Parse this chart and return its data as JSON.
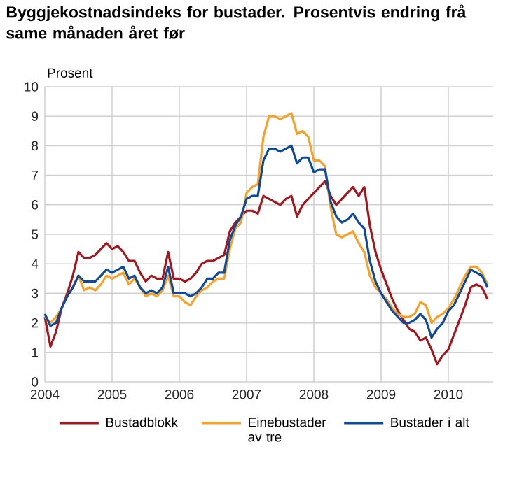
{
  "chart_data": {
    "type": "line",
    "title": "Byggjekostnadsindeks for bustader. Prosentvis endring frå same månaden året før",
    "ylabel": "Prosent",
    "x": [
      "2004-01",
      "2004-02",
      "2004-03",
      "2004-04",
      "2004-05",
      "2004-06",
      "2004-07",
      "2004-08",
      "2004-09",
      "2004-10",
      "2004-11",
      "2004-12",
      "2005-01",
      "2005-02",
      "2005-03",
      "2005-04",
      "2005-05",
      "2005-06",
      "2005-07",
      "2005-08",
      "2005-09",
      "2005-10",
      "2005-11",
      "2005-12",
      "2006-01",
      "2006-02",
      "2006-03",
      "2006-04",
      "2006-05",
      "2006-06",
      "2006-07",
      "2006-08",
      "2006-09",
      "2006-10",
      "2006-11",
      "2006-12",
      "2007-01",
      "2007-02",
      "2007-03",
      "2007-04",
      "2007-05",
      "2007-06",
      "2007-07",
      "2007-08",
      "2007-09",
      "2007-10",
      "2007-11",
      "2007-12",
      "2008-01",
      "2008-02",
      "2008-03",
      "2008-04",
      "2008-05",
      "2008-06",
      "2008-07",
      "2008-08",
      "2008-09",
      "2008-10",
      "2008-11",
      "2008-12",
      "2009-01",
      "2009-02",
      "2009-03",
      "2009-04",
      "2009-05",
      "2009-06",
      "2009-07",
      "2009-08",
      "2009-09",
      "2009-10",
      "2009-11",
      "2009-12",
      "2010-01",
      "2010-02",
      "2010-03",
      "2010-04",
      "2010-05",
      "2010-06",
      "2010-07",
      "2010-08"
    ],
    "series": [
      {
        "name": "Bustadblokk",
        "color": "#a3171e",
        "values": [
          2.2,
          1.2,
          1.7,
          2.5,
          3.0,
          3.6,
          4.4,
          4.2,
          4.2,
          4.3,
          4.5,
          4.7,
          4.5,
          4.6,
          4.4,
          4.1,
          4.1,
          3.7,
          3.4,
          3.6,
          3.5,
          3.5,
          4.4,
          3.5,
          3.5,
          3.4,
          3.5,
          3.7,
          4.0,
          4.1,
          4.1,
          4.2,
          4.3,
          5.1,
          5.4,
          5.6,
          5.8,
          5.8,
          5.7,
          6.3,
          6.2,
          6.1,
          6.0,
          6.2,
          6.3,
          5.6,
          6.0,
          6.2,
          6.4,
          6.6,
          6.8,
          6.3,
          6.0,
          6.2,
          6.4,
          6.6,
          6.3,
          6.6,
          5.3,
          4.4,
          3.8,
          3.3,
          2.8,
          2.4,
          2.1,
          1.8,
          1.7,
          1.4,
          1.5,
          1.1,
          0.6,
          0.9,
          1.1,
          1.6,
          2.1,
          2.6,
          3.2,
          3.3,
          3.2,
          2.8
        ]
      },
      {
        "name": "Einebustader av tre",
        "color": "#f7a128",
        "values": [
          2.2,
          2.0,
          2.2,
          2.5,
          2.9,
          3.2,
          3.6,
          3.1,
          3.2,
          3.1,
          3.3,
          3.6,
          3.5,
          3.6,
          3.7,
          3.3,
          3.5,
          3.2,
          2.9,
          3.0,
          2.9,
          3.1,
          3.6,
          2.9,
          2.9,
          2.7,
          2.6,
          2.9,
          3.1,
          3.2,
          3.4,
          3.5,
          3.5,
          4.5,
          5.2,
          5.4,
          6.4,
          6.6,
          6.7,
          8.3,
          9.0,
          9.0,
          8.9,
          9.0,
          9.1,
          8.4,
          8.5,
          8.3,
          7.5,
          7.5,
          7.3,
          5.9,
          5.0,
          4.9,
          5.0,
          5.1,
          4.7,
          4.4,
          3.6,
          3.2,
          3.0,
          2.8,
          2.5,
          2.3,
          2.2,
          2.2,
          2.3,
          2.7,
          2.6,
          2.0,
          2.2,
          2.3,
          2.5,
          2.8,
          3.2,
          3.6,
          3.9,
          3.9,
          3.7,
          3.3
        ]
      },
      {
        "name": "Bustader i alt",
        "color": "#0d4a9c",
        "values": [
          2.3,
          1.9,
          2.0,
          2.5,
          2.9,
          3.2,
          3.6,
          3.4,
          3.4,
          3.4,
          3.6,
          3.8,
          3.7,
          3.8,
          3.9,
          3.5,
          3.6,
          3.2,
          3.0,
          3.1,
          3.0,
          3.2,
          3.9,
          3.0,
          3.0,
          3.0,
          2.9,
          3.0,
          3.2,
          3.5,
          3.5,
          3.7,
          3.7,
          4.8,
          5.3,
          5.6,
          6.2,
          6.3,
          6.3,
          7.5,
          7.9,
          7.9,
          7.8,
          7.9,
          8.0,
          7.4,
          7.6,
          7.6,
          7.1,
          7.2,
          7.2,
          6.1,
          5.6,
          5.4,
          5.5,
          5.7,
          5.4,
          5.2,
          4.1,
          3.4,
          3.0,
          2.7,
          2.4,
          2.2,
          2.0,
          2.0,
          2.1,
          2.3,
          2.1,
          1.5,
          1.8,
          2.0,
          2.4,
          2.6,
          3.0,
          3.4,
          3.8,
          3.7,
          3.6,
          3.2
        ]
      }
    ],
    "xlim": [
      "2004-01",
      "2010-09"
    ],
    "xticks": [
      "2004",
      "2005",
      "2006",
      "2007",
      "2008",
      "2009",
      "2010"
    ],
    "ylim": [
      0,
      10
    ],
    "yticks": [
      0,
      1,
      2,
      3,
      4,
      5,
      6,
      7,
      8,
      9,
      10
    ],
    "grid": true,
    "legend": "bottom",
    "line_style": "solid"
  }
}
